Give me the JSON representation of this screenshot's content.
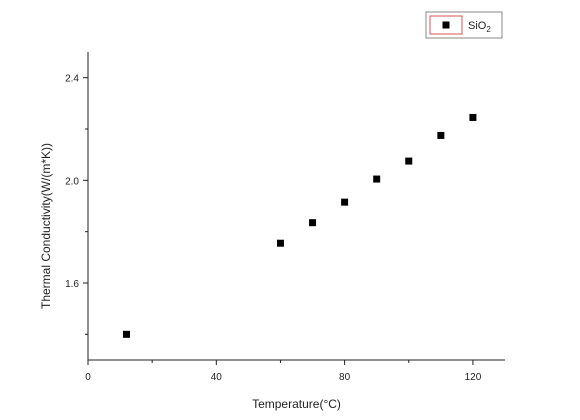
{
  "chart_data": {
    "type": "scatter",
    "title": "",
    "xlabel": "Temperature(°C)",
    "ylabel": "Thermal Conductivity(W/(m*K))",
    "xlim": [
      0,
      130
    ],
    "ylim": [
      1.3,
      2.5
    ],
    "x_ticks": [
      0,
      40,
      80,
      120
    ],
    "x_tick_labels": [
      "0",
      "40",
      "80",
      "120"
    ],
    "y_ticks": [
      1.6,
      2.0,
      2.4
    ],
    "y_tick_labels": [
      "1.6",
      "2.0",
      "2.4"
    ],
    "grid": false,
    "legend_position": "top-right",
    "marker": "square",
    "marker_color": "#000000",
    "legend_border_color": "#d9534f",
    "series": [
      {
        "name": "SiO2",
        "x": [
          12,
          60,
          70,
          80,
          90,
          100,
          110,
          120
        ],
        "y": [
          1.4,
          1.755,
          1.835,
          1.915,
          2.005,
          2.075,
          2.175,
          2.245
        ]
      }
    ]
  }
}
